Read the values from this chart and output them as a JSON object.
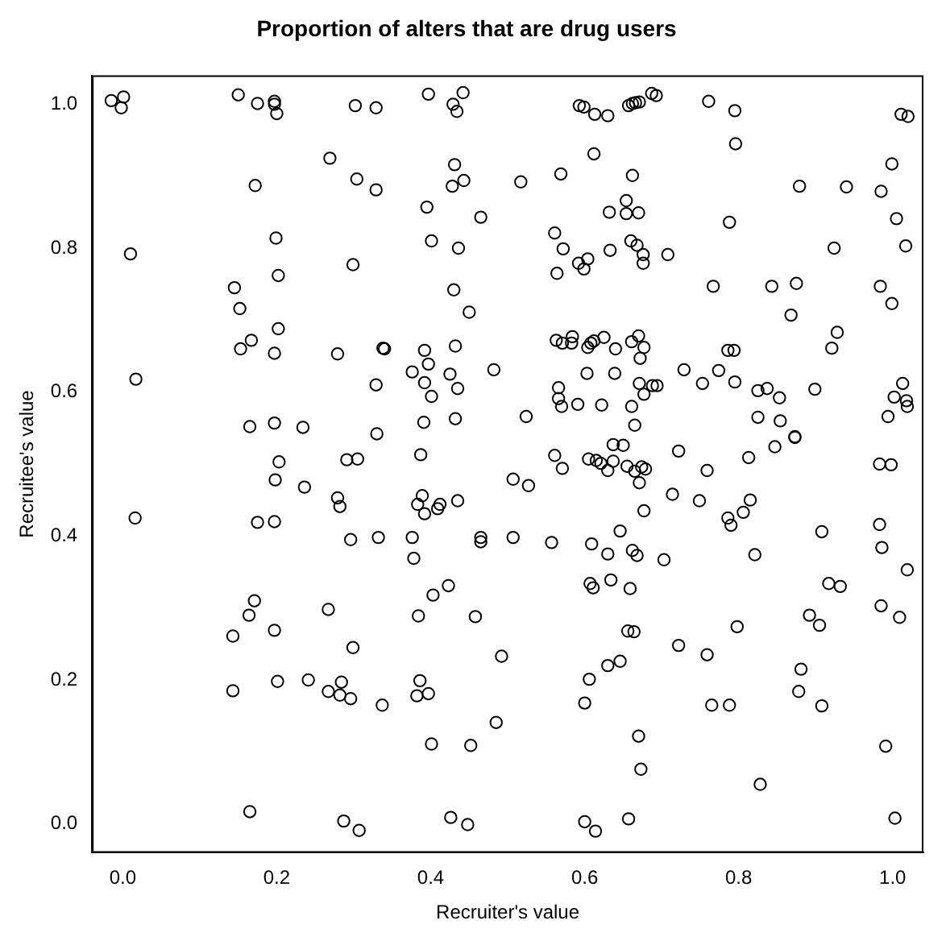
{
  "chart_data": {
    "type": "scatter",
    "title": "Proportion of alters that are drug users",
    "xlabel": "Recruiter's value",
    "ylabel": "Recruitee's value",
    "color": "#000000",
    "marker": "circle",
    "grid": false,
    "legend": false,
    "xlim": [
      -0.04,
      1.04
    ],
    "ylim": [
      -0.04,
      1.04
    ],
    "xticks": [
      {
        "value": 0,
        "label": "0.0"
      },
      0.2,
      0.4,
      0.6,
      0.8,
      {
        "value": 1,
        "label": "1.0"
      }
    ],
    "yticks": [
      {
        "value": 0,
        "label": "0.0"
      },
      0.2,
      0.4,
      0.6,
      0.8,
      {
        "value": 1,
        "label": "1.0"
      }
    ],
    "x": [
      -0.015,
      0.001,
      -0.002,
      0.15,
      0.175,
      0.197,
      0.197,
      0.2,
      0.302,
      0.329,
      0.397,
      0.429,
      0.434,
      0.442,
      0.593,
      0.599,
      0.613,
      0.63,
      0.657,
      0.662,
      0.666,
      0.671,
      0.687,
      0.693,
      0.761,
      0.795,
      1.011,
      1.02,
      0.269,
      0.612,
      0.796,
      0.172,
      0.304,
      0.329,
      0.431,
      0.428,
      0.443,
      0.517,
      0.569,
      0.662,
      0.879,
      0.94,
      0.985,
      0.999,
      0.395,
      0.465,
      0.632,
      0.654,
      0.654,
      0.67,
      0.788,
      1.005,
      0.01,
      0.199,
      0.299,
      0.401,
      0.436,
      0.561,
      0.572,
      0.592,
      0.599,
      0.604,
      0.633,
      0.66,
      0.668,
      0.676,
      0.676,
      0.708,
      0.924,
      1.017,
      0.145,
      0.152,
      0.202,
      0.43,
      0.45,
      0.564,
      0.767,
      0.843,
      0.875,
      0.868,
      0.984,
      0.999,
      0.153,
      0.167,
      0.202,
      0.197,
      0.279,
      0.338,
      0.34,
      0.392,
      0.432,
      0.397,
      0.376,
      0.392,
      0.329,
      0.425,
      0.435,
      0.401,
      0.482,
      0.563,
      0.571,
      0.583,
      0.584,
      0.604,
      0.608,
      0.612,
      0.625,
      0.64,
      0.661,
      0.67,
      0.677,
      0.672,
      0.603,
      0.639,
      0.566,
      0.566,
      0.57,
      0.591,
      0.622,
      0.661,
      0.671,
      0.677,
      0.688,
      0.694,
      0.729,
      0.774,
      0.753,
      0.795,
      0.825,
      0.837,
      0.853,
      0.899,
      0.786,
      0.794,
      0.921,
      0.928,
      1.013,
      1.002,
      1.018,
      1.019,
      0.994,
      0.017,
      0.165,
      0.197,
      0.234,
      0.33,
      0.391,
      0.432,
      0.524,
      0.665,
      0.825,
      0.854,
      0.873,
      0.873,
      0.847,
      0.637,
      0.65,
      0.387,
      0.561,
      0.722,
      0.813,
      0.291,
      0.305,
      0.203,
      0.571,
      0.605,
      0.615,
      0.621,
      0.63,
      0.637,
      0.655,
      0.665,
      0.674,
      0.679,
      0.671,
      0.759,
      0.983,
      0.998,
      0.198,
      0.236,
      0.507,
      0.527,
      0.714,
      0.749,
      0.815,
      0.677,
      0.806,
      0.786,
      0.79,
      0.983,
      0.279,
      0.282,
      0.389,
      0.383,
      0.392,
      0.409,
      0.412,
      0.435,
      0.016,
      0.175,
      0.197,
      0.296,
      0.332,
      0.376,
      0.465,
      0.465,
      0.507,
      0.557,
      0.609,
      0.646,
      0.63,
      0.662,
      0.668,
      0.703,
      0.821,
      0.908,
      0.986,
      1.019,
      0.378,
      0.607,
      0.611,
      0.634,
      0.659,
      0.917,
      0.932,
      0.403,
      0.423,
      0.171,
      0.164,
      0.267,
      0.384,
      0.458,
      0.892,
      0.905,
      0.985,
      1.009,
      0.798,
      0.143,
      0.197,
      0.299,
      0.656,
      0.664,
      0.722,
      0.759,
      0.492,
      0.63,
      0.646,
      0.881,
      0.143,
      0.201,
      0.241,
      0.267,
      0.284,
      0.282,
      0.296,
      0.337,
      0.386,
      0.382,
      0.397,
      0.606,
      0.6,
      0.765,
      0.788,
      0.878,
      0.908,
      0.485,
      0.401,
      0.452,
      0.67,
      0.991,
      0.673,
      0.828,
      0.165,
      0.287,
      0.307,
      0.426,
      0.448,
      0.6,
      0.614,
      0.657,
      1.003
    ],
    "values": [
      1.005,
      1.01,
      0.995,
      1.013,
      1.001,
      1.004,
      1.0,
      0.987,
      0.998,
      0.995,
      1.014,
      1.0,
      0.99,
      1.016,
      0.998,
      0.996,
      0.986,
      0.984,
      0.998,
      1.001,
      1.002,
      1.003,
      1.015,
      1.012,
      1.004,
      0.991,
      0.986,
      0.983,
      0.925,
      0.931,
      0.945,
      0.887,
      0.896,
      0.881,
      0.916,
      0.886,
      0.894,
      0.892,
      0.903,
      0.901,
      0.886,
      0.885,
      0.879,
      0.917,
      0.857,
      0.843,
      0.85,
      0.866,
      0.848,
      0.849,
      0.836,
      0.841,
      0.792,
      0.814,
      0.777,
      0.81,
      0.8,
      0.821,
      0.799,
      0.779,
      0.771,
      0.785,
      0.797,
      0.81,
      0.804,
      0.791,
      0.779,
      0.791,
      0.8,
      0.803,
      0.745,
      0.716,
      0.762,
      0.742,
      0.711,
      0.765,
      0.747,
      0.747,
      0.751,
      0.707,
      0.747,
      0.723,
      0.66,
      0.672,
      0.688,
      0.654,
      0.653,
      0.661,
      0.66,
      0.658,
      0.664,
      0.639,
      0.628,
      0.613,
      0.61,
      0.625,
      0.605,
      0.594,
      0.631,
      0.672,
      0.668,
      0.668,
      0.677,
      0.662,
      0.668,
      0.671,
      0.676,
      0.66,
      0.67,
      0.678,
      0.662,
      0.647,
      0.626,
      0.626,
      0.606,
      0.591,
      0.58,
      0.583,
      0.582,
      0.58,
      0.612,
      0.597,
      0.609,
      0.609,
      0.631,
      0.63,
      0.612,
      0.614,
      0.602,
      0.605,
      0.592,
      0.604,
      0.658,
      0.658,
      0.661,
      0.683,
      0.612,
      0.593,
      0.588,
      0.58,
      0.566,
      0.618,
      0.552,
      0.557,
      0.551,
      0.542,
      0.558,
      0.563,
      0.566,
      0.554,
      0.565,
      0.56,
      0.538,
      0.537,
      0.524,
      0.527,
      0.526,
      0.513,
      0.512,
      0.518,
      0.509,
      0.506,
      0.507,
      0.503,
      0.494,
      0.507,
      0.505,
      0.501,
      0.491,
      0.504,
      0.497,
      0.49,
      0.496,
      0.493,
      0.474,
      0.491,
      0.5,
      0.499,
      0.478,
      0.468,
      0.479,
      0.47,
      0.458,
      0.449,
      0.45,
      0.435,
      0.433,
      0.425,
      0.415,
      0.416,
      0.453,
      0.441,
      0.456,
      0.444,
      0.431,
      0.438,
      0.444,
      0.449,
      0.425,
      0.419,
      0.42,
      0.395,
      0.398,
      0.398,
      0.398,
      0.392,
      0.398,
      0.391,
      0.389,
      0.407,
      0.375,
      0.38,
      0.373,
      0.367,
      0.374,
      0.406,
      0.384,
      0.353,
      0.369,
      0.334,
      0.328,
      0.339,
      0.327,
      0.334,
      0.33,
      0.318,
      0.331,
      0.31,
      0.29,
      0.298,
      0.289,
      0.288,
      0.29,
      0.276,
      0.303,
      0.287,
      0.274,
      0.261,
      0.269,
      0.245,
      0.268,
      0.267,
      0.248,
      0.235,
      0.233,
      0.22,
      0.226,
      0.215,
      0.185,
      0.198,
      0.2,
      0.184,
      0.197,
      0.179,
      0.174,
      0.165,
      0.199,
      0.178,
      0.181,
      0.201,
      0.168,
      0.165,
      0.165,
      0.184,
      0.164,
      0.141,
      0.111,
      0.109,
      0.122,
      0.108,
      0.076,
      0.055,
      0.017,
      0.004,
      -0.009,
      0.009,
      -0.001,
      0.003,
      -0.01,
      0.007,
      0.008
    ]
  }
}
